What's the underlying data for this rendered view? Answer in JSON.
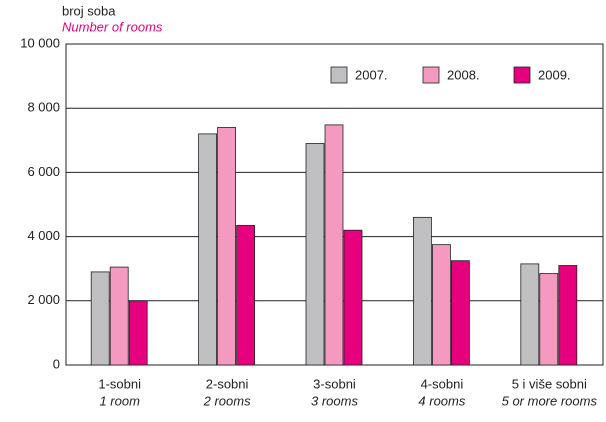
{
  "chart_data": {
    "type": "bar",
    "y_label": [
      "broj soba",
      "Number of rooms"
    ],
    "categories": [
      [
        "1-sobni",
        "1 room"
      ],
      [
        "2-sobni",
        "2 rooms"
      ],
      [
        "3-sobni",
        "3 rooms"
      ],
      [
        "4-sobni",
        "4 rooms"
      ],
      [
        "5 i više sobni",
        "5 or more rooms"
      ]
    ],
    "series": [
      {
        "name": "2007.",
        "color": "#c0c0c2",
        "values": [
          2900,
          7200,
          6900,
          4600,
          3150
        ]
      },
      {
        "name": "2008.",
        "color": "#f49ac1",
        "values": [
          3050,
          7400,
          7480,
          3750,
          2850
        ]
      },
      {
        "name": "2009.",
        "color": "#e6007e",
        "values": [
          2000,
          4350,
          4200,
          3250,
          3100
        ]
      }
    ],
    "ylim": [
      0,
      10000
    ],
    "yticks": [
      0,
      {
        "value": 2000,
        "label": "2 000"
      },
      {
        "value": 4000,
        "label": "4 000"
      },
      {
        "value": 6000,
        "label": "6 000"
      },
      {
        "value": 8000,
        "label": "8 000"
      },
      {
        "value": 10000,
        "label": "10 000"
      }
    ],
    "grid": true,
    "legend": "top-right"
  }
}
